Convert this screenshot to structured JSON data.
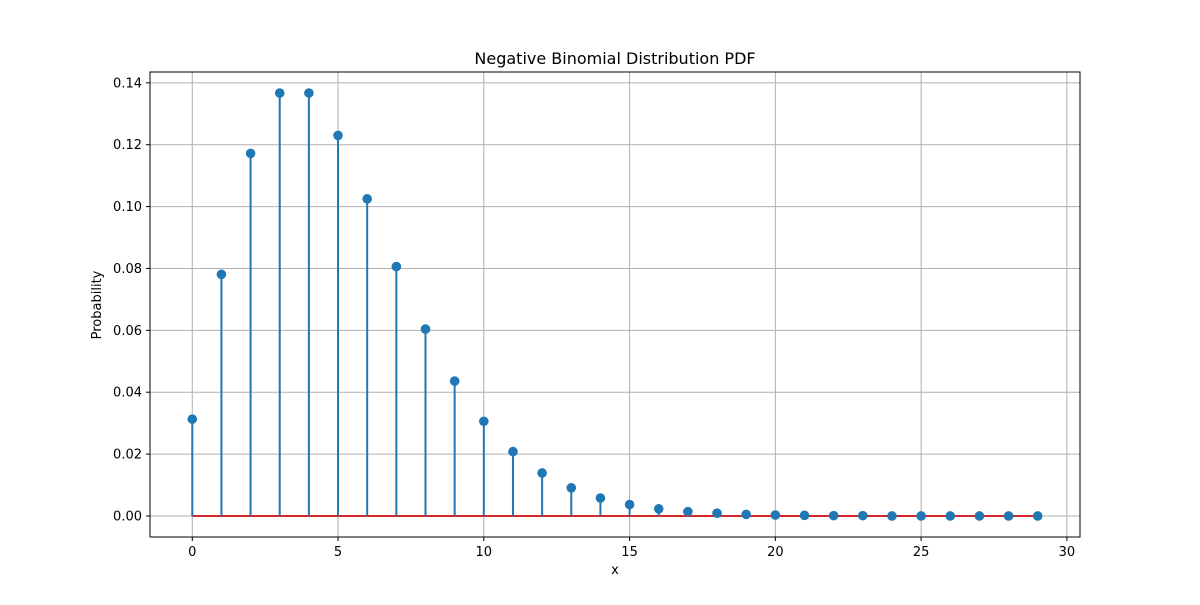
{
  "chart_data": {
    "type": "stem",
    "title": "Negative Binomial Distribution PDF",
    "xlabel": "x",
    "ylabel": "Probability",
    "xlim": [
      -1.45,
      30.45
    ],
    "ylim": [
      -0.0068,
      0.1435
    ],
    "xticks": [
      0,
      5,
      10,
      15,
      20,
      25,
      30
    ],
    "xtick_labels": [
      "0",
      "5",
      "10",
      "15",
      "20",
      "25",
      "30"
    ],
    "yticks": [
      0.0,
      0.02,
      0.04,
      0.06,
      0.08,
      0.1,
      0.12,
      0.14
    ],
    "ytick_labels": [
      "0.00",
      "0.02",
      "0.04",
      "0.06",
      "0.08",
      "0.10",
      "0.12",
      "0.14"
    ],
    "grid": true,
    "x": [
      0,
      1,
      2,
      3,
      4,
      5,
      6,
      7,
      8,
      9,
      10,
      11,
      12,
      13,
      14,
      15,
      16,
      17,
      18,
      19,
      20,
      21,
      22,
      23,
      24,
      25,
      26,
      27,
      28,
      29
    ],
    "values": [
      0.0313,
      0.0781,
      0.1172,
      0.1367,
      0.1367,
      0.123,
      0.1025,
      0.0806,
      0.0604,
      0.0436,
      0.0306,
      0.0208,
      0.0139,
      0.0091,
      0.0058,
      0.0037,
      0.0023,
      0.0014,
      0.0009,
      0.0005,
      0.0003,
      0.0002,
      0.0001,
      0.0001,
      0.0,
      0.0,
      0.0,
      0.0,
      0.0,
      0.0
    ],
    "colors": {
      "stem": "#1f77b4",
      "marker": "#1f77b4",
      "baseline": "#d62728",
      "grid": "#b0b0b0"
    }
  }
}
